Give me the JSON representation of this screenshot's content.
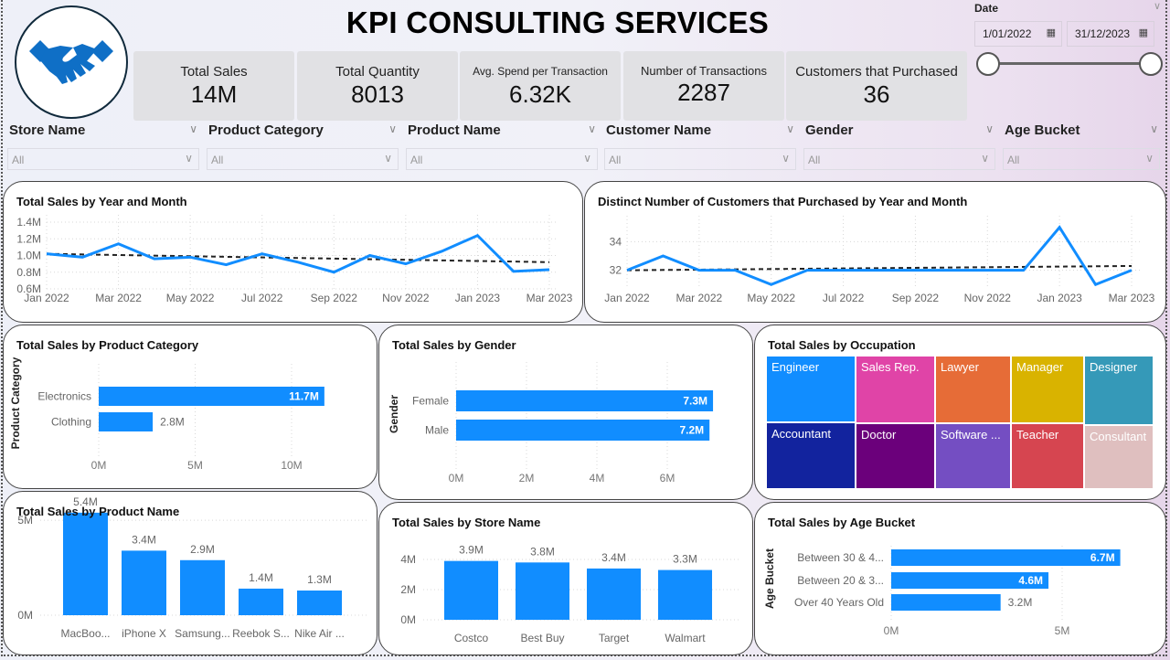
{
  "header": {
    "title": "KPI CONSULTING SERVICES",
    "logo_icon": "handshake-icon",
    "logo_color": "#0f6fc6"
  },
  "kpis": [
    {
      "label": "Total Sales",
      "value": "14M"
    },
    {
      "label": "Total Quantity",
      "value": "8013"
    },
    {
      "label": "Avg. Spend per Transaction",
      "value": "6.32K"
    },
    {
      "label": "Number of Transactions",
      "value": "2287"
    },
    {
      "label": "Customers that Purchased",
      "value": "36"
    }
  ],
  "date_slicer": {
    "label": "Date",
    "start": "1/01/2022",
    "end": "31/12/2023",
    "range_selected": [
      0,
      1
    ]
  },
  "slicers": [
    {
      "label": "Store Name",
      "value": "All"
    },
    {
      "label": "Product Category",
      "value": "All"
    },
    {
      "label": "Product Name",
      "value": "All"
    },
    {
      "label": "Customer Name",
      "value": "All"
    },
    {
      "label": "Gender",
      "value": "All"
    },
    {
      "label": "Age Bucket",
      "value": "All"
    }
  ],
  "colors": {
    "accent": "#118dff",
    "trend": "#222222"
  },
  "chart_data": [
    {
      "id": "sales_by_month",
      "type": "line",
      "title": "Total Sales by Year and Month",
      "x": [
        "Jan 2022",
        "Feb 2022",
        "Mar 2022",
        "Apr 2022",
        "May 2022",
        "Jun 2022",
        "Jul 2022",
        "Aug 2022",
        "Sep 2022",
        "Oct 2022",
        "Nov 2022",
        "Dec 2022",
        "Jan 2023",
        "Feb 2023",
        "Mar 2023"
      ],
      "xticks": [
        "Jan 2022",
        "Mar 2022",
        "May 2022",
        "Jul 2022",
        "Sep 2022",
        "Nov 2022",
        "Jan 2023",
        "Mar 2023"
      ],
      "values": [
        1.02,
        0.98,
        1.14,
        0.96,
        0.98,
        0.89,
        1.02,
        0.92,
        0.8,
        1.0,
        0.9,
        1.05,
        1.24,
        0.81,
        0.83
      ],
      "trend": [
        1.02,
        0.92
      ],
      "yticks": [
        "0.6M",
        "0.8M",
        "1.0M",
        "1.2M",
        "1.4M"
      ],
      "ylim": [
        0.6,
        1.4
      ],
      "unit": "M",
      "grid": true
    },
    {
      "id": "customers_by_month",
      "type": "line",
      "title": "Distinct Number of Customers that Purchased by Year and Month",
      "x": [
        "Jan 2022",
        "Feb 2022",
        "Mar 2022",
        "Apr 2022",
        "May 2022",
        "Jun 2022",
        "Jul 2022",
        "Aug 2022",
        "Sep 2022",
        "Oct 2022",
        "Nov 2022",
        "Dec 2022",
        "Jan 2023",
        "Feb 2023",
        "Mar 2023"
      ],
      "xticks": [
        "Jan 2022",
        "Mar 2022",
        "May 2022",
        "Jul 2022",
        "Sep 2022",
        "Nov 2022",
        "Jan 2023",
        "Mar 2023"
      ],
      "values": [
        32,
        33,
        32,
        32,
        31,
        32,
        32,
        32,
        32,
        32,
        32,
        32,
        35,
        31,
        32
      ],
      "trend": [
        32.0,
        32.3
      ],
      "yticks": [
        "32",
        "34"
      ],
      "ylim": [
        30.7,
        35.3
      ],
      "grid": true
    },
    {
      "id": "sales_by_category",
      "type": "bar",
      "orientation": "horizontal",
      "title": "Total Sales by Product Category",
      "ylabel": "Product Category",
      "categories": [
        "Electronics",
        "Clothing"
      ],
      "values": [
        11.7,
        2.8
      ],
      "labels": [
        "11.7M",
        "2.8M"
      ],
      "xticks": [
        "0M",
        "5M",
        "10M"
      ],
      "xlim": [
        0,
        13.5
      ]
    },
    {
      "id": "sales_by_gender",
      "type": "bar",
      "orientation": "horizontal",
      "title": "Total Sales by Gender",
      "ylabel": "Gender",
      "categories": [
        "Female",
        "Male"
      ],
      "values": [
        7.3,
        7.2
      ],
      "labels": [
        "7.3M",
        "7.2M"
      ],
      "xticks": [
        "0M",
        "2M",
        "4M",
        "6M"
      ],
      "xlim": [
        0,
        8
      ]
    },
    {
      "id": "sales_by_occupation",
      "type": "treemap",
      "title": "Total Sales by Occupation",
      "categories": [
        "Engineer",
        "Accountant",
        "Sales Rep.",
        "Doctor",
        "Lawyer",
        "Software ...",
        "Manager",
        "Teacher",
        "Designer",
        "Consultant"
      ],
      "colors": [
        "#118dff",
        "#12239e",
        "#e044a7",
        "#6b007b",
        "#e66c37",
        "#744ec2",
        "#d9b300",
        "#d64550",
        "#3599b8",
        "#dfbfbf"
      ]
    },
    {
      "id": "sales_by_product",
      "type": "bar",
      "orientation": "vertical",
      "title": "Total Sales by Product Name",
      "categories": [
        "MacBoo...",
        "iPhone X",
        "Samsung...",
        "Reebok S...",
        "Nike Air ..."
      ],
      "values": [
        5.4,
        3.4,
        2.9,
        1.4,
        1.3
      ],
      "labels": [
        "5.4M",
        "3.4M",
        "2.9M",
        "1.4M",
        "1.3M"
      ],
      "yticks": [
        "0M",
        "5M"
      ],
      "ylim": [
        0,
        6.5
      ]
    },
    {
      "id": "sales_by_store",
      "type": "bar",
      "orientation": "vertical",
      "title": "Total Sales by Store Name",
      "categories": [
        "Costco",
        "Best Buy",
        "Target",
        "Walmart"
      ],
      "values": [
        3.9,
        3.8,
        3.4,
        3.3
      ],
      "labels": [
        "3.9M",
        "3.8M",
        "3.4M",
        "3.3M"
      ],
      "yticks": [
        "0M",
        "2M",
        "4M"
      ],
      "ylim": [
        0,
        4.5
      ]
    },
    {
      "id": "sales_by_age",
      "type": "bar",
      "orientation": "horizontal",
      "title": "Total Sales by Age Bucket",
      "ylabel": "Age Bucket",
      "categories": [
        "Between 30 & 4...",
        "Between 20 & 3...",
        "Over 40 Years Old"
      ],
      "values": [
        6.7,
        4.6,
        3.2
      ],
      "labels": [
        "6.7M",
        "4.6M",
        "3.2M"
      ],
      "xticks": [
        "0M",
        "5M"
      ],
      "xlim": [
        0,
        7.6
      ]
    }
  ]
}
